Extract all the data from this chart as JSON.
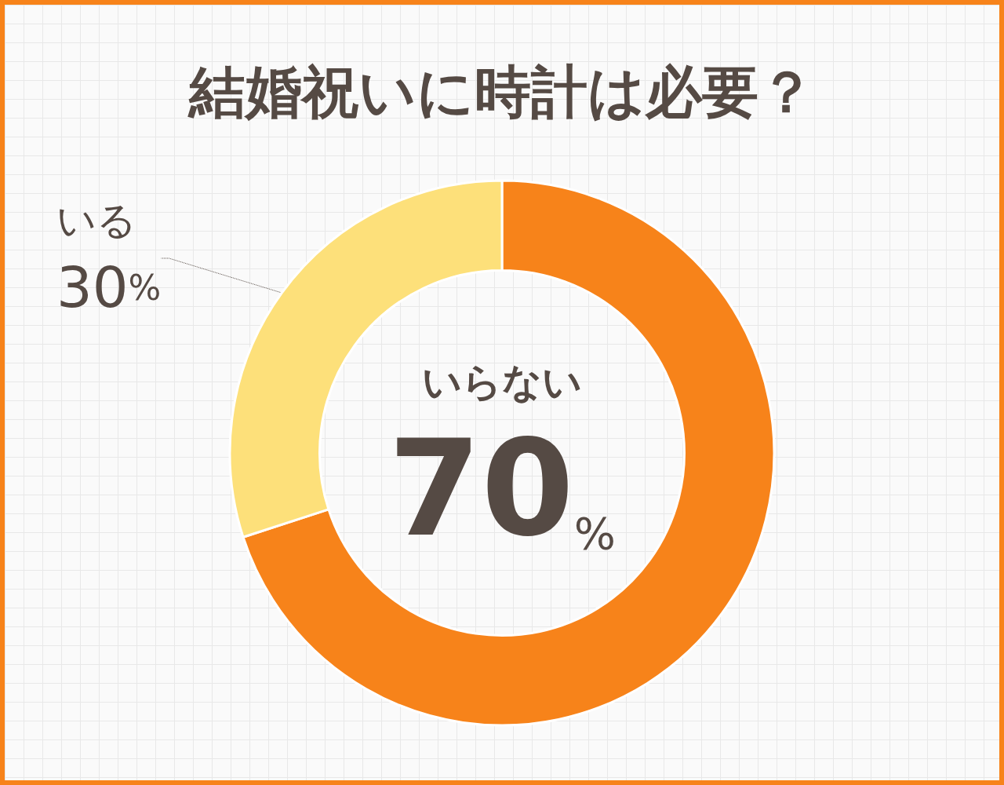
{
  "chart_data": {
    "type": "donut",
    "title": "結婚祝いに時計は必要？",
    "categories": [
      "いらない",
      "いる"
    ],
    "values": [
      70,
      30
    ],
    "colors": [
      "#f7831a",
      "#fde07a"
    ],
    "value_labels": [
      "70%",
      "30%"
    ],
    "legend": false
  }
}
